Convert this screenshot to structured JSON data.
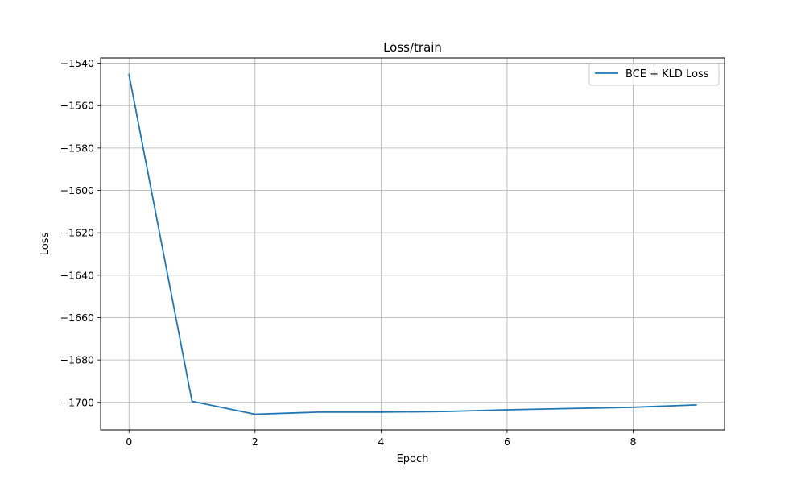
{
  "chart_data": {
    "type": "line",
    "title": "Loss/train",
    "xlabel": "Epoch",
    "ylabel": "Loss",
    "xlim": [
      -0.45,
      9.45
    ],
    "ylim": [
      -1713,
      -1537.5
    ],
    "xticks": [
      0,
      2,
      4,
      6,
      8
    ],
    "yticks": [
      -1540,
      -1560,
      -1580,
      -1600,
      -1620,
      -1640,
      -1660,
      -1680,
      -1700
    ],
    "grid": true,
    "legend_position": "top-right",
    "series": [
      {
        "name": "BCE + KLD Loss",
        "color": "#1f77b4",
        "x": [
          0,
          1,
          2,
          3,
          4,
          5,
          6,
          7,
          8,
          9
        ],
        "y": [
          -1545.3,
          -1699.5,
          -1705.6,
          -1704.6,
          -1704.6,
          -1704.3,
          -1703.5,
          -1702.9,
          -1702.3,
          -1701.2
        ]
      }
    ]
  }
}
